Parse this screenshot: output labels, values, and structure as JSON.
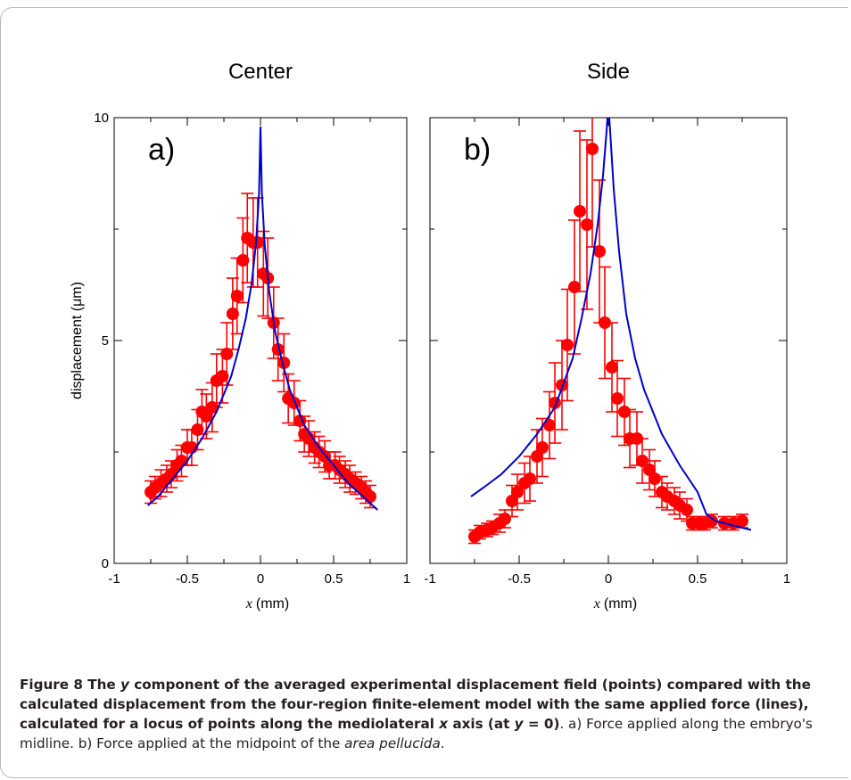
{
  "figure": {
    "panel_titles": [
      "Center",
      "Side"
    ],
    "panel_letters": [
      "a)",
      "b)"
    ],
    "ylabel": "displacement (μm)",
    "xlabel_var": "x",
    "xlabel_unit": "(mm)",
    "x_ticks": [
      "-1",
      "-0.5",
      "0",
      "0.5",
      "1"
    ],
    "y_ticks": [
      "0",
      "5",
      "10"
    ]
  },
  "caption": {
    "label": "Figure 8",
    "bold_1": "The",
    "bold_var_y": "y",
    "bold_2": "component of the averaged experimental displacement field (points) compared with the calculated displacement from the four-region finite-element model with the same applied force (lines), calculated for a locus of points along the mediolateral",
    "bold_var_x": "x",
    "bold_3": "axis (at",
    "bold_var_y2": "y",
    "bold_4": "= 0)",
    "rest_1": ". a) Force applied along the embryo's midline. b) Force applied at the midpoint of the",
    "rest_italic": "area pellucida",
    "rest_2": "."
  },
  "colors": {
    "points": "#ff0000",
    "model": "#0000cc",
    "axes": "#000000"
  },
  "chart_data": [
    {
      "type": "scatter",
      "title": "Center",
      "panel_label": "a)",
      "xlabel": "x (mm)",
      "ylabel": "displacement (μm)",
      "xlim": [
        -1,
        1
      ],
      "ylim": [
        0,
        10
      ],
      "series": [
        {
          "kind": "points_with_error_bars",
          "x": [
            -0.75,
            -0.72,
            -0.68,
            -0.64,
            -0.61,
            -0.57,
            -0.54,
            -0.5,
            -0.47,
            -0.43,
            -0.4,
            -0.37,
            -0.33,
            -0.3,
            -0.26,
            -0.23,
            -0.19,
            -0.16,
            -0.12,
            -0.09,
            -0.05,
            -0.02,
            0.02,
            0.05,
            0.09,
            0.12,
            0.16,
            0.19,
            0.23,
            0.27,
            0.3,
            0.33,
            0.37,
            0.4,
            0.44,
            0.47,
            0.51,
            0.54,
            0.58,
            0.61,
            0.65,
            0.69,
            0.72,
            0.75
          ],
          "y": [
            1.6,
            1.7,
            1.8,
            1.9,
            2.0,
            2.2,
            2.3,
            2.6,
            2.6,
            3.0,
            3.4,
            3.3,
            3.5,
            4.1,
            4.2,
            4.7,
            5.6,
            6.0,
            6.8,
            7.3,
            7.2,
            7.2,
            6.5,
            6.4,
            5.4,
            4.8,
            4.5,
            3.7,
            3.6,
            3.2,
            2.9,
            2.8,
            2.6,
            2.5,
            2.4,
            2.2,
            2.2,
            2.1,
            2.0,
            1.9,
            1.8,
            1.7,
            1.6,
            1.5
          ],
          "err": [
            0.25,
            0.25,
            0.3,
            0.3,
            0.3,
            0.35,
            0.35,
            0.4,
            0.4,
            0.45,
            0.5,
            0.5,
            0.55,
            0.6,
            0.6,
            0.7,
            0.8,
            0.85,
            0.95,
            1.0,
            1.0,
            1.0,
            0.95,
            0.9,
            0.8,
            0.7,
            0.65,
            0.55,
            0.5,
            0.45,
            0.4,
            0.4,
            0.35,
            0.35,
            0.35,
            0.3,
            0.3,
            0.3,
            0.3,
            0.3,
            0.25,
            0.25,
            0.25,
            0.25
          ]
        },
        {
          "kind": "model_line",
          "x": [
            -0.77,
            -0.7,
            -0.6,
            -0.5,
            -0.4,
            -0.3,
            -0.2,
            -0.15,
            -0.1,
            -0.06,
            -0.03,
            -0.01,
            0,
            0.01,
            0.03,
            0.06,
            0.1,
            0.15,
            0.2,
            0.3,
            0.4,
            0.5,
            0.6,
            0.7,
            0.8
          ],
          "y": [
            1.3,
            1.5,
            1.9,
            2.3,
            2.8,
            3.4,
            4.2,
            4.8,
            5.5,
            6.3,
            7.2,
            8.3,
            9.8,
            8.3,
            7.1,
            6.1,
            5.2,
            4.5,
            3.9,
            3.1,
            2.6,
            2.2,
            1.8,
            1.5,
            1.2
          ]
        }
      ]
    },
    {
      "type": "scatter",
      "title": "Side",
      "panel_label": "b)",
      "xlabel": "x (mm)",
      "ylabel": "displacement (μm)",
      "xlim": [
        -1,
        1
      ],
      "ylim": [
        0,
        10
      ],
      "series": [
        {
          "kind": "points_with_error_bars",
          "x": [
            -0.75,
            -0.72,
            -0.68,
            -0.65,
            -0.61,
            -0.58,
            -0.54,
            -0.51,
            -0.47,
            -0.44,
            -0.4,
            -0.37,
            -0.33,
            -0.3,
            -0.26,
            -0.23,
            -0.19,
            -0.16,
            -0.12,
            -0.09,
            -0.05,
            -0.02,
            0.02,
            0.05,
            0.09,
            0.12,
            0.16,
            0.19,
            0.23,
            0.26,
            0.3,
            0.33,
            0.37,
            0.4,
            0.44,
            0.47,
            0.51,
            0.54,
            0.58,
            0.65,
            0.7,
            0.75
          ],
          "y": [
            0.6,
            0.7,
            0.75,
            0.8,
            0.9,
            1.0,
            1.4,
            1.6,
            1.8,
            1.9,
            2.4,
            2.6,
            3.1,
            3.6,
            4.0,
            4.9,
            6.2,
            7.9,
            7.6,
            9.3,
            7.0,
            5.4,
            4.4,
            3.7,
            3.4,
            2.8,
            2.8,
            2.3,
            2.1,
            1.9,
            1.6,
            1.5,
            1.4,
            1.3,
            1.2,
            0.9,
            0.9,
            0.9,
            0.95,
            0.9,
            0.9,
            0.95
          ],
          "err": [
            0.15,
            0.15,
            0.15,
            0.15,
            0.2,
            0.2,
            0.35,
            0.4,
            0.45,
            0.5,
            0.6,
            0.65,
            0.75,
            0.9,
            1.0,
            1.25,
            1.5,
            1.8,
            1.9,
            2.2,
            1.6,
            1.25,
            1.0,
            0.85,
            0.75,
            0.65,
            0.6,
            0.5,
            0.45,
            0.4,
            0.35,
            0.3,
            0.3,
            0.3,
            0.25,
            0.15,
            0.15,
            0.15,
            0.15,
            0.15,
            0.15,
            0.15
          ]
        },
        {
          "kind": "model_line",
          "x": [
            -0.77,
            -0.7,
            -0.6,
            -0.5,
            -0.4,
            -0.3,
            -0.2,
            -0.15,
            -0.1,
            -0.06,
            -0.03,
            -0.01,
            0,
            0.01,
            0.03,
            0.06,
            0.1,
            0.15,
            0.2,
            0.3,
            0.4,
            0.5,
            0.55,
            0.6,
            0.7,
            0.8
          ],
          "y": [
            1.5,
            1.7,
            2.0,
            2.4,
            2.9,
            3.5,
            4.6,
            5.5,
            6.5,
            7.6,
            8.7,
            9.7,
            10.3,
            9.7,
            8.4,
            7.0,
            5.6,
            4.6,
            3.9,
            2.9,
            2.2,
            1.6,
            1.1,
            0.95,
            0.85,
            0.75
          ]
        }
      ]
    }
  ]
}
